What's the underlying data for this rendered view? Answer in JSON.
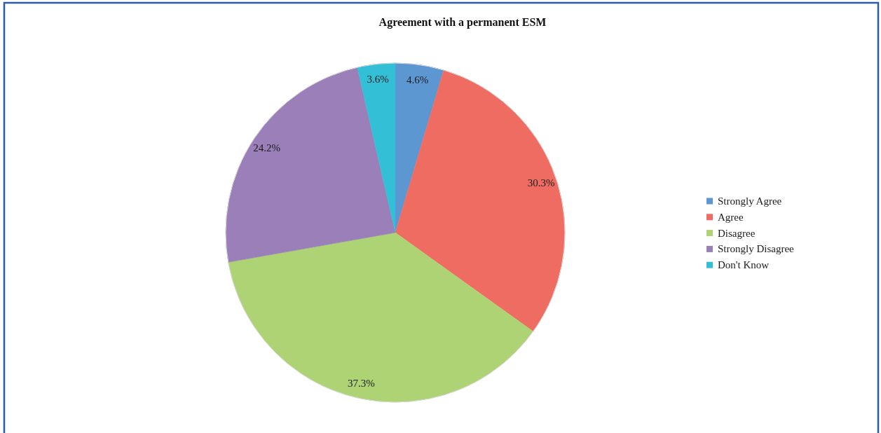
{
  "chart_data": {
    "type": "pie",
    "title": "Agreement with a permanent ESM",
    "categories": [
      "Strongly Agree",
      "Agree",
      "Disagree",
      "Strongly Disagree",
      "Don't Know"
    ],
    "values": [
      4.6,
      30.3,
      37.3,
      24.2,
      3.6
    ],
    "colors": [
      "#5d97d2",
      "#ef6c62",
      "#aed374",
      "#9a7fb9",
      "#33bfd6"
    ],
    "value_labels": [
      "4.6%",
      "30.3%",
      "37.3%",
      "24.2%",
      "3.6%"
    ],
    "legend": "right"
  }
}
